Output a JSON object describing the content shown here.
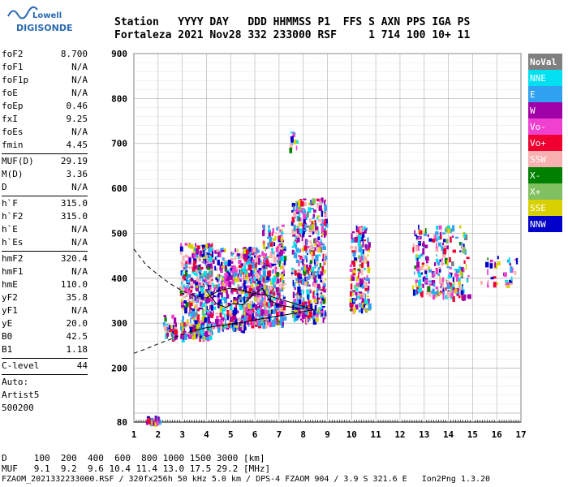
{
  "logo": {
    "line1": "Lowell",
    "line2": "DIGISONDE"
  },
  "header": {
    "line1": "Station   YYYY DAY   DDD HHMMSS P1  FFS S AXN PPS IGA PS",
    "line2": "Fortaleza 2021 Nov28 332 233000 RSF     1 714 100 10+ 11"
  },
  "params": {
    "group1": [
      {
        "label": "foF2",
        "value": "8.700"
      },
      {
        "label": "foF1",
        "value": "N/A"
      },
      {
        "label": "foF1p",
        "value": "N/A"
      },
      {
        "label": "foE",
        "value": "N/A"
      },
      {
        "label": "foEp",
        "value": "0.46"
      },
      {
        "label": "fxI",
        "value": "9.25"
      },
      {
        "label": "foEs",
        "value": "N/A"
      },
      {
        "label": "fmin",
        "value": "4.45"
      }
    ],
    "group2": [
      {
        "label": "MUF(D)",
        "value": "29.19"
      },
      {
        "label": "M(D)",
        "value": "3.36"
      },
      {
        "label": "D",
        "value": "N/A"
      }
    ],
    "group3": [
      {
        "label": "h`F",
        "value": "315.0"
      },
      {
        "label": "h`F2",
        "value": "315.0"
      },
      {
        "label": "h`E",
        "value": "N/A"
      },
      {
        "label": "h`Es",
        "value": "N/A"
      }
    ],
    "group4": [
      {
        "label": "hmF2",
        "value": "320.4"
      },
      {
        "label": "hmF1",
        "value": "N/A"
      },
      {
        "label": "hmE",
        "value": "110.0"
      },
      {
        "label": "yF2",
        "value": "35.8"
      },
      {
        "label": "yF1",
        "value": "N/A"
      },
      {
        "label": "yE",
        "value": "20.0"
      },
      {
        "label": "B0",
        "value": "42.5"
      },
      {
        "label": "B1",
        "value": "1.18"
      }
    ],
    "clevel": {
      "label": "C-level",
      "value": "44"
    },
    "auto": [
      "Auto:",
      "Artist5",
      "500200"
    ]
  },
  "footer": {
    "line1": "D     100  200  400  600  800 1000 1500 3000 [km]",
    "line2": "MUF   9.1  9.2  9.6 10.4 11.4 13.0 17.5 29.2 [MHz]",
    "line3": "FZAOM_2021332233000.RSF / 320fx256h 50 kHz 5.0 km / DPS-4 FZAOM 904 / 3.9 S 321.6 E   Ion2Png 1.3.20"
  },
  "chart_data": {
    "type": "scatter",
    "title": "",
    "xlabel": "",
    "ylabel": "",
    "xlim": [
      1,
      17
    ],
    "ylim": [
      80,
      900
    ],
    "x_ticks": [
      1,
      2,
      3,
      4,
      5,
      6,
      7,
      8,
      9,
      10,
      11,
      12,
      13,
      14,
      15,
      16,
      17
    ],
    "y_ticks": [
      80,
      200,
      300,
      400,
      500,
      600,
      700,
      800,
      900
    ],
    "grid": true,
    "legend": [
      {
        "name": "NoVal",
        "color": "#808080"
      },
      {
        "name": "NNE",
        "color": "#00e0f0"
      },
      {
        "name": "E",
        "color": "#30a0f0"
      },
      {
        "name": "W",
        "color": "#a000a8"
      },
      {
        "name": "Vo-",
        "color": "#f040d0"
      },
      {
        "name": "Vo+",
        "color": "#f00030"
      },
      {
        "name": "SSW",
        "color": "#f8b0b0"
      },
      {
        "name": "X-",
        "color": "#008000"
      },
      {
        "name": "X+",
        "color": "#80c060"
      },
      {
        "name": "SSE",
        "color": "#d8d000"
      },
      {
        "name": "NNW",
        "color": "#0000c8"
      }
    ],
    "clusters": [
      {
        "x": [
          2.9,
          4.2
        ],
        "y": [
          270,
          480
        ],
        "n": 420
      },
      {
        "x": [
          4.0,
          5.6
        ],
        "y": [
          290,
          470
        ],
        "n": 380
      },
      {
        "x": [
          5.5,
          6.4
        ],
        "y": [
          300,
          470
        ],
        "n": 300
      },
      {
        "x": [
          6.3,
          7.2
        ],
        "y": [
          300,
          520
        ],
        "n": 300
      },
      {
        "x": [
          7.5,
          8.9
        ],
        "y": [
          310,
          580
        ],
        "n": 480
      },
      {
        "x": [
          9.9,
          10.7
        ],
        "y": [
          330,
          520
        ],
        "n": 170
      },
      {
        "x": [
          12.5,
          13.2
        ],
        "y": [
          370,
          520
        ],
        "n": 90
      },
      {
        "x": [
          13.3,
          14.8
        ],
        "y": [
          360,
          520
        ],
        "n": 170
      },
      {
        "x": [
          15.3,
          16.9
        ],
        "y": [
          390,
          450
        ],
        "n": 35
      },
      {
        "x": [
          2.2,
          2.7
        ],
        "y": [
          270,
          320
        ],
        "n": 40
      },
      {
        "x": [
          1.5,
          2.0
        ],
        "y": [
          82,
          95
        ],
        "n": 30
      },
      {
        "x": [
          7.4,
          7.7
        ],
        "y": [
          690,
          730
        ],
        "n": 12
      }
    ],
    "lines": [
      {
        "name": "upper-dashed",
        "style": "dashed",
        "points": [
          [
            1.0,
            465
          ],
          [
            1.5,
            430
          ],
          [
            2.0,
            408
          ],
          [
            2.5,
            388
          ],
          [
            3.0,
            372
          ],
          [
            3.5,
            362
          ],
          [
            4.0,
            356
          ]
        ]
      },
      {
        "name": "lower-dashed",
        "style": "dashed",
        "points": [
          [
            1.0,
            233
          ],
          [
            1.5,
            243
          ],
          [
            2.0,
            254
          ],
          [
            2.5,
            264
          ],
          [
            3.0,
            275
          ],
          [
            3.5,
            284
          ]
        ]
      },
      {
        "name": "profile-upper",
        "style": "solid",
        "points": [
          [
            4.0,
            356
          ],
          [
            4.5,
            372
          ],
          [
            5.0,
            378
          ],
          [
            5.5,
            372
          ],
          [
            6.0,
            366
          ],
          [
            6.5,
            362
          ],
          [
            7.0,
            354
          ],
          [
            7.5,
            346
          ],
          [
            8.0,
            337
          ],
          [
            8.45,
            330
          ]
        ]
      },
      {
        "name": "trace-lower",
        "style": "solid",
        "points": [
          [
            3.5,
            284
          ],
          [
            4.0,
            290
          ],
          [
            4.5,
            294
          ],
          [
            5.0,
            298
          ],
          [
            5.5,
            302
          ],
          [
            6.0,
            307
          ],
          [
            6.5,
            312
          ],
          [
            7.0,
            316
          ],
          [
            7.5,
            321
          ],
          [
            8.0,
            326
          ],
          [
            8.45,
            330
          ]
        ]
      },
      {
        "name": "trace-mid",
        "style": "solid",
        "points": [
          [
            4.0,
            372
          ],
          [
            4.4,
            344
          ],
          [
            4.8,
            335
          ],
          [
            5.1,
            344
          ],
          [
            5.5,
            341
          ],
          [
            5.9,
            362
          ],
          [
            6.3,
            378
          ],
          [
            6.6,
            352
          ],
          [
            7.0,
            340
          ],
          [
            7.5,
            336
          ],
          [
            8.0,
            332
          ]
        ]
      }
    ]
  }
}
